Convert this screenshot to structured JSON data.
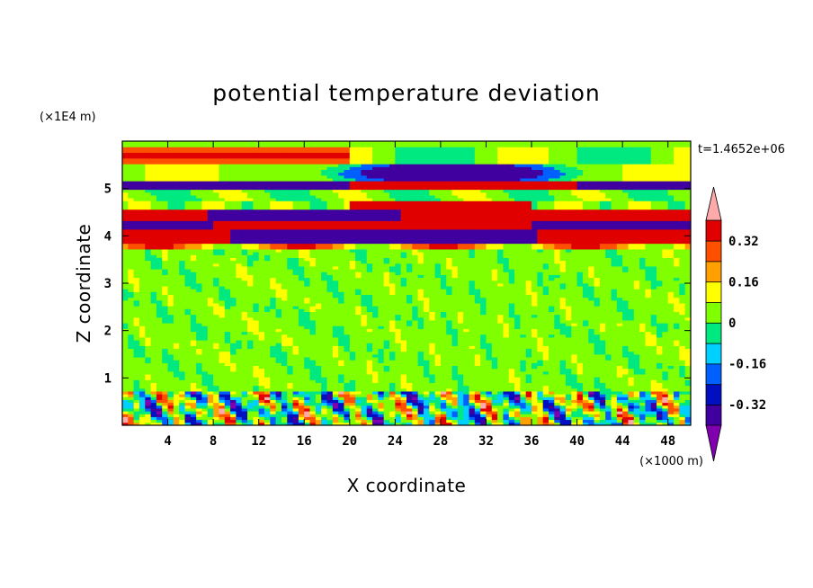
{
  "chart_data": {
    "type": "heatmap",
    "title": "potential temperature deviation",
    "xlabel": "X coordinate",
    "ylabel": "Z coordinate",
    "x_unit": "(×1000 m)",
    "y_unit": "(×1E4 m)",
    "time_label": "t=1.4652e+06",
    "x_range": [
      0,
      50
    ],
    "y_range": [
      0,
      6
    ],
    "x_ticks": [
      4,
      8,
      12,
      16,
      20,
      24,
      28,
      32,
      36,
      40,
      44,
      48
    ],
    "x_tick_labels": [
      "4",
      "8",
      "12",
      "16",
      "20",
      "24",
      "28",
      "32",
      "36",
      "40",
      "44",
      "48"
    ],
    "y_ticks": [
      1,
      2,
      3,
      4,
      5
    ],
    "y_tick_labels": [
      "1",
      "2",
      "3",
      "4",
      "5"
    ],
    "colorbar": {
      "levels": [
        -0.4,
        -0.32,
        -0.24,
        -0.16,
        -0.08,
        0,
        0.08,
        0.16,
        0.24,
        0.32,
        0.4
      ],
      "labels": [
        "-0.32",
        "-0.16",
        "0",
        "0.16",
        "0.32"
      ],
      "label_values": [
        -0.32,
        -0.16,
        0,
        0.16,
        0.32
      ],
      "colors": [
        "#8000b0",
        "#4000a0",
        "#0010c0",
        "#0060ff",
        "#00d0ff",
        "#00e880",
        "#80ff00",
        "#ffff00",
        "#ffa000",
        "#ff5000",
        "#e00000",
        "#ffaaaa"
      ],
      "extend": "both"
    },
    "bands": [
      {
        "z0": 5.55,
        "z1": 5.9,
        "x0": 0,
        "x1": 50,
        "value": 0.36
      },
      {
        "z0": 5.15,
        "z1": 5.5,
        "x0": 22,
        "x1": 36,
        "value": -0.38
      },
      {
        "z0": 4.95,
        "z1": 5.15,
        "x0": 0,
        "x1": 50,
        "value": -0.38
      },
      {
        "z0": 4.3,
        "z1": 4.55,
        "x0": 8,
        "x1": 24,
        "value": -0.38
      },
      {
        "z0": 3.85,
        "z1": 4.15,
        "x0": 10,
        "x1": 36,
        "value": -0.38
      },
      {
        "z0": 0,
        "z1": 0.7,
        "x0": 0,
        "x1": 50,
        "value": -0.16
      }
    ]
  }
}
